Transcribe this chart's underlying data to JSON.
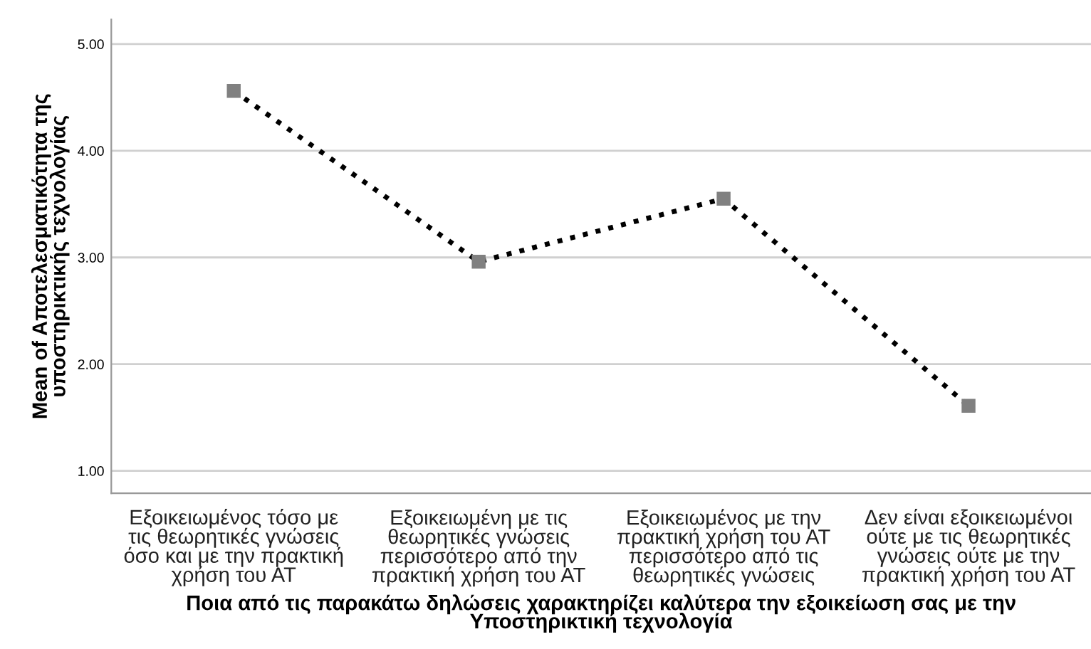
{
  "chart_data": {
    "type": "line",
    "xlabel": "Ποια από τις παρακάτω δηλώσεις χαρακτηρίζει καλύτερα την εξοικείωση σας με την Υποστηρικτική τεχνολογία",
    "ylabel": "Mean of Αποτελεσματικότητα της υποστηρικτικής τεχνολογίας",
    "categories": [
      "Εξοικειωμένος τόσο με τις θεωρητικές γνώσεις όσο και με την πρακτική χρήση του ΑΤ",
      "Εξοικειωμένη με τις θεωρητικές γνώσεις περισσότερο από την πρακτική χρήση του ΑΤ",
      "Εξοικειωμένος με την πρακτική χρήση του ΑΤ περισσότερο από τις θεωρητικές γνώσεις",
      "Δεν είναι εξοικειωμένοι ούτε με τις θεωρητικές γνώσεις ούτε με την πρακτική χρήση του ΑΤ"
    ],
    "series": [
      {
        "color": "#000000",
        "values": [
          4.56,
          2.96,
          3.55,
          1.61
        ]
      }
    ],
    "ylim": [
      0.79,
      5.23
    ],
    "yticks": [
      {
        "value": 1,
        "label": "1.00"
      },
      {
        "value": 2,
        "label": "2.00"
      },
      {
        "value": 3,
        "label": "3.00"
      },
      {
        "value": 4,
        "label": "4.00"
      },
      {
        "value": 5,
        "label": "5.00"
      }
    ],
    "grid": "y",
    "marker": "square",
    "line_style": "dotted"
  }
}
